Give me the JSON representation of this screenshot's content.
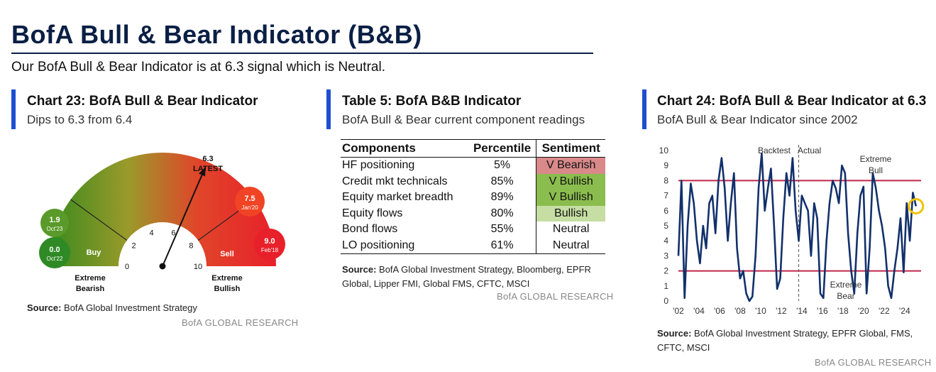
{
  "header": {
    "title": "BofA Bull & Bear Indicator (B&B)",
    "subtitle": "Our BofA Bull & Bear Indicator is at 6.3 signal which is Neutral."
  },
  "gauge_panel": {
    "title": "Chart 23: BofA Bull & Bear Indicator",
    "subtitle": "Dips to 6.3 from 6.4",
    "latest_value": "6.3",
    "latest_label": "LATEST",
    "zone_buy": "Buy",
    "zone_sell": "Sell",
    "left_label_1": "Extreme",
    "left_label_2": "Bearish",
    "right_label_1": "Extreme",
    "right_label_2": "Bullish",
    "bubbles": [
      {
        "value": "1.9",
        "date": "Oct'23",
        "color": "#5a9a2a"
      },
      {
        "value": "0.0",
        "date": "Oct'22",
        "color": "#2f8a25"
      },
      {
        "value": "7.5",
        "date": "Jan'20",
        "color": "#f04424"
      },
      {
        "value": "9.0",
        "date": "Feb'18",
        "color": "#e8202a"
      }
    ],
    "source_bold": "Source:",
    "source_text": " BofA Global Investment Strategy",
    "brand": "BofA GLOBAL RESEARCH"
  },
  "table_panel": {
    "title": "Table 5: BofA B&B Indicator",
    "subtitle": "BofA Bull & Bear current component readings",
    "headers": [
      "Components",
      "Percentile",
      "Sentiment"
    ],
    "rows": [
      {
        "component": "HF positioning",
        "percentile": "5%",
        "sentiment": "V Bearish",
        "style": "vbear"
      },
      {
        "component": "Credit mkt technicals",
        "percentile": "85%",
        "sentiment": "V Bullish",
        "style": "vbull"
      },
      {
        "component": "Equity market breadth",
        "percentile": "89%",
        "sentiment": "V Bullish",
        "style": "vbull"
      },
      {
        "component": "Equity flows",
        "percentile": "80%",
        "sentiment": "Bullish",
        "style": "bull"
      },
      {
        "component": "Bond flows",
        "percentile": "55%",
        "sentiment": "Neutral",
        "style": "none"
      },
      {
        "component": "LO positioning",
        "percentile": "61%",
        "sentiment": "Neutral",
        "style": "none"
      }
    ],
    "source_bold": "Source:",
    "source_line1": " BofA Global Investment Strategy, Bloomberg, EPFR",
    "source_line2": "Global, Lipper FMI, Global FMS, CFTC, MSCI",
    "brand": "BofA GLOBAL RESEARCH"
  },
  "line_panel": {
    "title": "Chart 24: BofA Bull & Bear Indicator at 6.3",
    "subtitle": "BofA Bull & Bear Indicator since 2002",
    "source_bold": "Source:",
    "source_line1": " BofA Global Investment Strategy, EPFR Global, FMS,",
    "source_line2": "CFTC, MSCI",
    "brand": "BofA GLOBAL RESEARCH"
  },
  "chart_data": [
    {
      "type": "gauge",
      "title": "Chart 23: BofA Bull & Bear Indicator",
      "range": [
        0,
        10
      ],
      "ticks": [
        "0",
        "2",
        "4",
        "6",
        "8",
        "10"
      ],
      "value": 6.3,
      "zones": [
        {
          "label": "Buy",
          "from": 0,
          "to": 2
        },
        {
          "label": "Sell",
          "from": 8,
          "to": 10
        }
      ],
      "markers": [
        {
          "value": 1.9,
          "date": "Oct'23"
        },
        {
          "value": 0.0,
          "date": "Oct'22"
        },
        {
          "value": 7.5,
          "date": "Jan'20"
        },
        {
          "value": 9.0,
          "date": "Feb'18"
        }
      ]
    },
    {
      "type": "line",
      "title": "Chart 24: BofA Bull & Bear Indicator at 6.3",
      "x_tick_labels": [
        "'02",
        "'04",
        "'06",
        "'08",
        "'10",
        "'12",
        "'14",
        "'16",
        "'18",
        "'20",
        "'22",
        "'24"
      ],
      "y_ticks": [
        "0",
        "1",
        "2",
        "3",
        "4",
        "5",
        "6",
        "7",
        "8",
        "9",
        "10"
      ],
      "ylim": [
        0,
        10
      ],
      "xlim": [
        2002,
        2025.6
      ],
      "thresholds": [
        {
          "value": 8,
          "color": "#c2264a"
        },
        {
          "value": 2,
          "color": "#c2264a"
        }
      ],
      "split_year": 2013.7,
      "annotations": {
        "backtest": "Backtest",
        "actual": "Actual",
        "bull_1": "Extreme",
        "bull_2": "Bull",
        "bear_1": "Extreme",
        "bear_2": "Bear"
      },
      "latest": {
        "x": 2025.1,
        "y": 6.3
      },
      "series": [
        {
          "color": "#12306b",
          "x": [
            2002.0,
            2002.3,
            2002.6,
            2002.9,
            2003.2,
            2003.5,
            2003.8,
            2004.1,
            2004.4,
            2004.7,
            2005.0,
            2005.3,
            2005.6,
            2005.9,
            2006.2,
            2006.5,
            2006.8,
            2007.1,
            2007.4,
            2007.7,
            2008.0,
            2008.3,
            2008.6,
            2008.9,
            2009.2,
            2009.5,
            2009.8,
            2010.1,
            2010.4,
            2010.7,
            2011.0,
            2011.3,
            2011.6,
            2011.9,
            2012.2,
            2012.5,
            2012.8,
            2013.1,
            2013.4,
            2013.7,
            2014.0,
            2014.3,
            2014.6,
            2014.9,
            2015.2,
            2015.5,
            2015.8,
            2016.1,
            2016.4,
            2016.7,
            2017.0,
            2017.3,
            2017.6,
            2017.9,
            2018.2,
            2018.5,
            2018.8,
            2019.1,
            2019.4,
            2019.7,
            2020.0,
            2020.3,
            2020.6,
            2020.9,
            2021.2,
            2021.5,
            2021.8,
            2022.1,
            2022.4,
            2022.7,
            2023.0,
            2023.3,
            2023.6,
            2023.9,
            2024.2,
            2024.5,
            2024.8,
            2025.1
          ],
          "y": [
            3.0,
            8.0,
            0.2,
            5.0,
            7.8,
            6.5,
            4.0,
            2.5,
            5.0,
            3.5,
            6.5,
            7.0,
            4.5,
            8.0,
            9.5,
            7.5,
            4.0,
            6.5,
            8.5,
            3.5,
            1.5,
            2.0,
            0.5,
            0.0,
            0.3,
            3.0,
            7.5,
            9.8,
            6.0,
            7.5,
            8.8,
            5.0,
            0.8,
            1.5,
            5.5,
            8.5,
            7.0,
            9.5,
            6.0,
            4.0,
            7.0,
            6.5,
            6.0,
            3.0,
            6.5,
            5.5,
            0.5,
            0.2,
            4.0,
            6.5,
            8.0,
            7.5,
            6.5,
            9.0,
            8.5,
            4.5,
            2.0,
            0.5,
            4.5,
            7.0,
            7.6,
            0.5,
            3.5,
            8.5,
            7.5,
            6.0,
            5.0,
            3.5,
            1.0,
            0.2,
            2.0,
            3.5,
            5.5,
            1.9,
            6.5,
            4.0,
            7.2,
            6.3
          ]
        }
      ]
    }
  ]
}
